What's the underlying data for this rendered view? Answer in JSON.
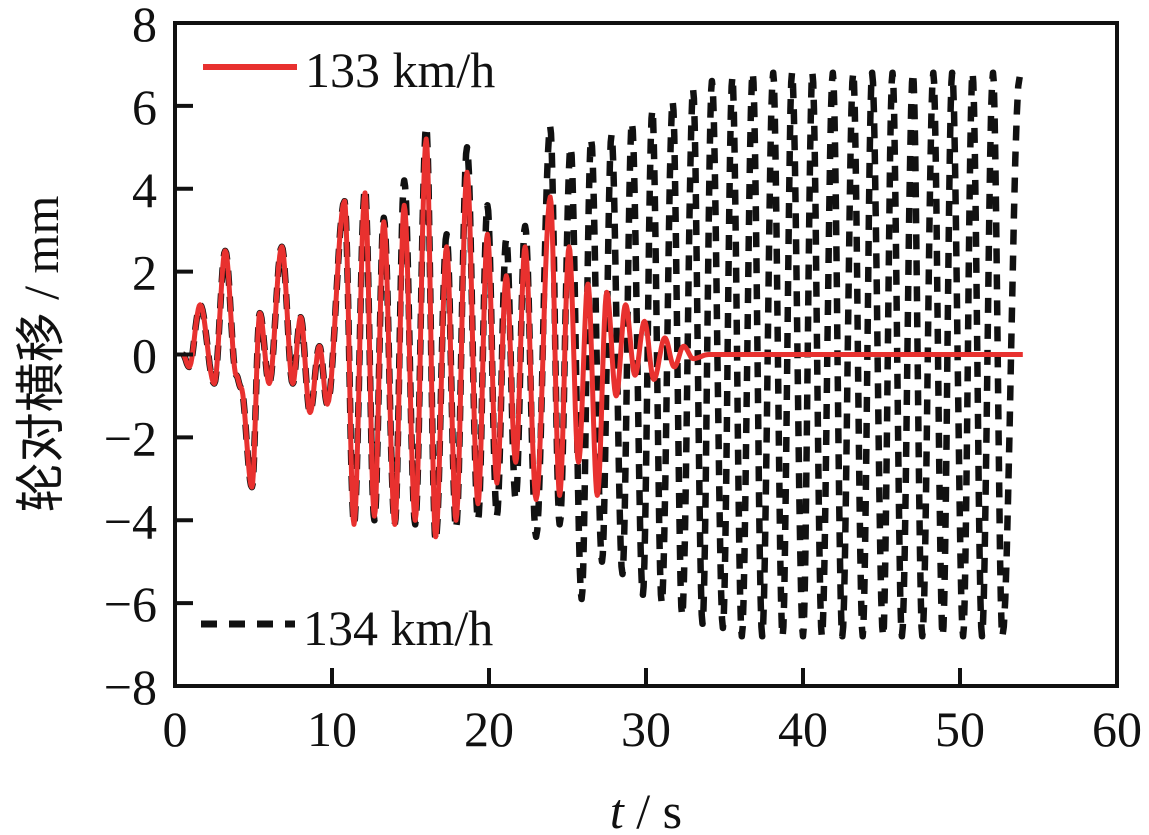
{
  "chart_data": {
    "type": "line",
    "title": "",
    "xlabel_italic": "t",
    "xlabel_rest": " / s",
    "ylabel": "轮对横移 / mm",
    "xlim": [
      0,
      60
    ],
    "ylim": [
      -8,
      8
    ],
    "xticks": [
      0,
      10,
      20,
      30,
      40,
      50,
      60
    ],
    "yticks": [
      -8,
      -6,
      -4,
      -2,
      0,
      2,
      4,
      6,
      8
    ],
    "ytick_labels": [
      "−8",
      "−6",
      "−4",
      "−2",
      "0",
      "2",
      "4",
      "6",
      "8"
    ],
    "grid": false,
    "series": [
      {
        "name": "133 km/h",
        "color": "#e8312f",
        "style": "solid",
        "extrema": [
          [
            0.5,
            0
          ],
          [
            0.9,
            -0.3
          ],
          [
            1.6,
            1.2
          ],
          [
            2.5,
            -0.7
          ],
          [
            3.2,
            2.5
          ],
          [
            3.9,
            -0.5
          ],
          [
            4.2,
            -0.8
          ],
          [
            4.9,
            -3.2
          ],
          [
            5.4,
            1.0
          ],
          [
            6.0,
            -0.7
          ],
          [
            6.8,
            2.6
          ],
          [
            7.5,
            -0.7
          ],
          [
            8.0,
            0.9
          ],
          [
            8.6,
            -1.4
          ],
          [
            9.2,
            0.2
          ],
          [
            9.7,
            -1.2
          ],
          [
            10.8,
            3.7
          ],
          [
            11.4,
            -4.1
          ],
          [
            12.1,
            3.9
          ],
          [
            12.7,
            -3.9
          ],
          [
            13.3,
            3.2
          ],
          [
            14.0,
            -4.1
          ],
          [
            14.6,
            3.6
          ],
          [
            15.3,
            -4.0
          ],
          [
            16.0,
            5.2
          ],
          [
            16.6,
            -4.4
          ],
          [
            17.3,
            2.6
          ],
          [
            17.9,
            -4.0
          ],
          [
            18.6,
            4.4
          ],
          [
            19.3,
            -3.6
          ],
          [
            19.9,
            2.9
          ],
          [
            20.5,
            -3.1
          ],
          [
            21.1,
            1.9
          ],
          [
            21.7,
            -2.6
          ],
          [
            22.3,
            2.6
          ],
          [
            23.0,
            -3.5
          ],
          [
            23.9,
            3.8
          ],
          [
            24.5,
            -3.4
          ],
          [
            25.1,
            2.6
          ],
          [
            25.7,
            -2.6
          ],
          [
            26.3,
            1.7
          ],
          [
            26.9,
            -3.4
          ],
          [
            27.5,
            1.5
          ],
          [
            28.1,
            -1.0
          ],
          [
            28.7,
            1.2
          ],
          [
            29.3,
            -0.5
          ],
          [
            29.9,
            0.8
          ],
          [
            30.5,
            -0.6
          ],
          [
            31.2,
            0.4
          ],
          [
            31.8,
            -0.3
          ],
          [
            32.4,
            0.2
          ],
          [
            33.0,
            -0.1
          ],
          [
            34.0,
            0
          ],
          [
            54.0,
            0
          ]
        ]
      },
      {
        "name": "134 km/h",
        "color": "#111111",
        "style": "dashed",
        "extrema": [
          [
            0.5,
            0
          ],
          [
            0.9,
            -0.3
          ],
          [
            1.6,
            1.2
          ],
          [
            2.5,
            -0.7
          ],
          [
            3.2,
            2.5
          ],
          [
            3.9,
            -0.5
          ],
          [
            4.2,
            -0.8
          ],
          [
            4.9,
            -3.2
          ],
          [
            5.4,
            1.0
          ],
          [
            6.0,
            -0.7
          ],
          [
            6.8,
            2.6
          ],
          [
            7.5,
            -0.7
          ],
          [
            8.0,
            0.9
          ],
          [
            8.6,
            -1.4
          ],
          [
            9.2,
            0.2
          ],
          [
            9.7,
            -1.2
          ],
          [
            10.8,
            3.7
          ],
          [
            11.4,
            -4.1
          ],
          [
            12.1,
            4.0
          ],
          [
            12.7,
            -4.0
          ],
          [
            13.3,
            3.3
          ],
          [
            14.0,
            -4.1
          ],
          [
            14.6,
            4.2
          ],
          [
            15.3,
            -4.1
          ],
          [
            16.0,
            5.5
          ],
          [
            16.6,
            -4.5
          ],
          [
            17.3,
            2.9
          ],
          [
            17.9,
            -4.2
          ],
          [
            18.6,
            5.0
          ],
          [
            19.3,
            -4.0
          ],
          [
            19.9,
            3.6
          ],
          [
            20.5,
            -3.9
          ],
          [
            21.1,
            2.8
          ],
          [
            21.7,
            -3.5
          ],
          [
            22.3,
            3.1
          ],
          [
            23.0,
            -4.4
          ],
          [
            23.9,
            5.5
          ],
          [
            24.5,
            -4.1
          ],
          [
            25.2,
            5.0
          ],
          [
            25.9,
            -5.9
          ],
          [
            26.5,
            5.2
          ],
          [
            27.2,
            -5.0
          ],
          [
            27.8,
            5.3
          ],
          [
            28.5,
            -5.3
          ],
          [
            29.1,
            5.6
          ],
          [
            29.8,
            -5.8
          ],
          [
            30.4,
            5.9
          ],
          [
            31.0,
            -6.0
          ],
          [
            31.7,
            6.1
          ],
          [
            32.3,
            -6.3
          ],
          [
            33.0,
            6.4
          ],
          [
            33.6,
            -6.5
          ],
          [
            34.2,
            6.6
          ],
          [
            34.9,
            -6.6
          ],
          [
            35.5,
            6.7
          ],
          [
            36.1,
            -6.8
          ],
          [
            36.8,
            6.8
          ],
          [
            37.4,
            -6.8
          ],
          [
            38.1,
            6.8
          ],
          [
            38.7,
            -6.8
          ],
          [
            39.3,
            6.8
          ],
          [
            40.0,
            -6.8
          ],
          [
            40.6,
            6.8
          ],
          [
            41.2,
            -6.8
          ],
          [
            41.9,
            6.8
          ],
          [
            42.5,
            -6.8
          ],
          [
            43.2,
            6.8
          ],
          [
            43.8,
            -6.8
          ],
          [
            44.4,
            6.8
          ],
          [
            45.1,
            -6.8
          ],
          [
            45.7,
            6.8
          ],
          [
            46.3,
            -6.8
          ],
          [
            47.0,
            6.8
          ],
          [
            47.6,
            -6.8
          ],
          [
            48.3,
            6.8
          ],
          [
            48.9,
            -6.8
          ],
          [
            49.5,
            6.8
          ],
          [
            50.2,
            -6.8
          ],
          [
            50.8,
            6.8
          ],
          [
            51.4,
            -6.8
          ],
          [
            52.1,
            6.8
          ],
          [
            52.7,
            -6.8
          ],
          [
            53.8,
            6.7
          ]
        ]
      }
    ],
    "legend_placement": "top-left and bottom-left"
  }
}
